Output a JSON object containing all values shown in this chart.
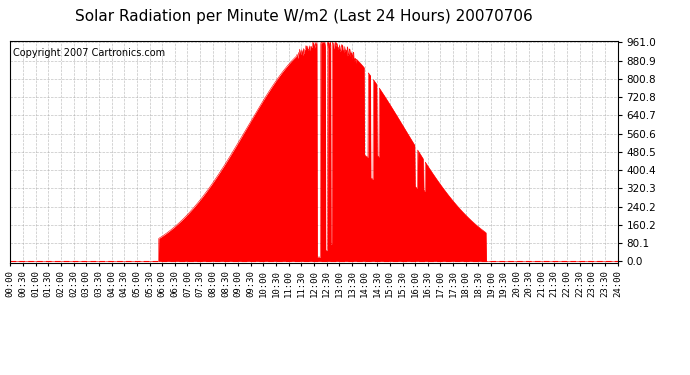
{
  "title": "Solar Radiation per Minute W/m2 (Last 24 Hours) 20070706",
  "copyright": "Copyright 2007 Cartronics.com",
  "yticks": [
    0.0,
    80.1,
    160.2,
    240.2,
    320.3,
    400.4,
    480.5,
    560.6,
    640.7,
    720.8,
    800.8,
    880.9,
    961.0
  ],
  "ymax": 961.0,
  "ymin": 0.0,
  "fill_color": "#FF0000",
  "line_color": "#FF0000",
  "bg_color": "#FFFFFF",
  "grid_color": "#AAAAAA",
  "dashed_line_color": "#FF0000",
  "title_fontsize": 11,
  "copyright_fontsize": 7,
  "tick_fontsize": 6.5,
  "ytick_fontsize": 7.5
}
